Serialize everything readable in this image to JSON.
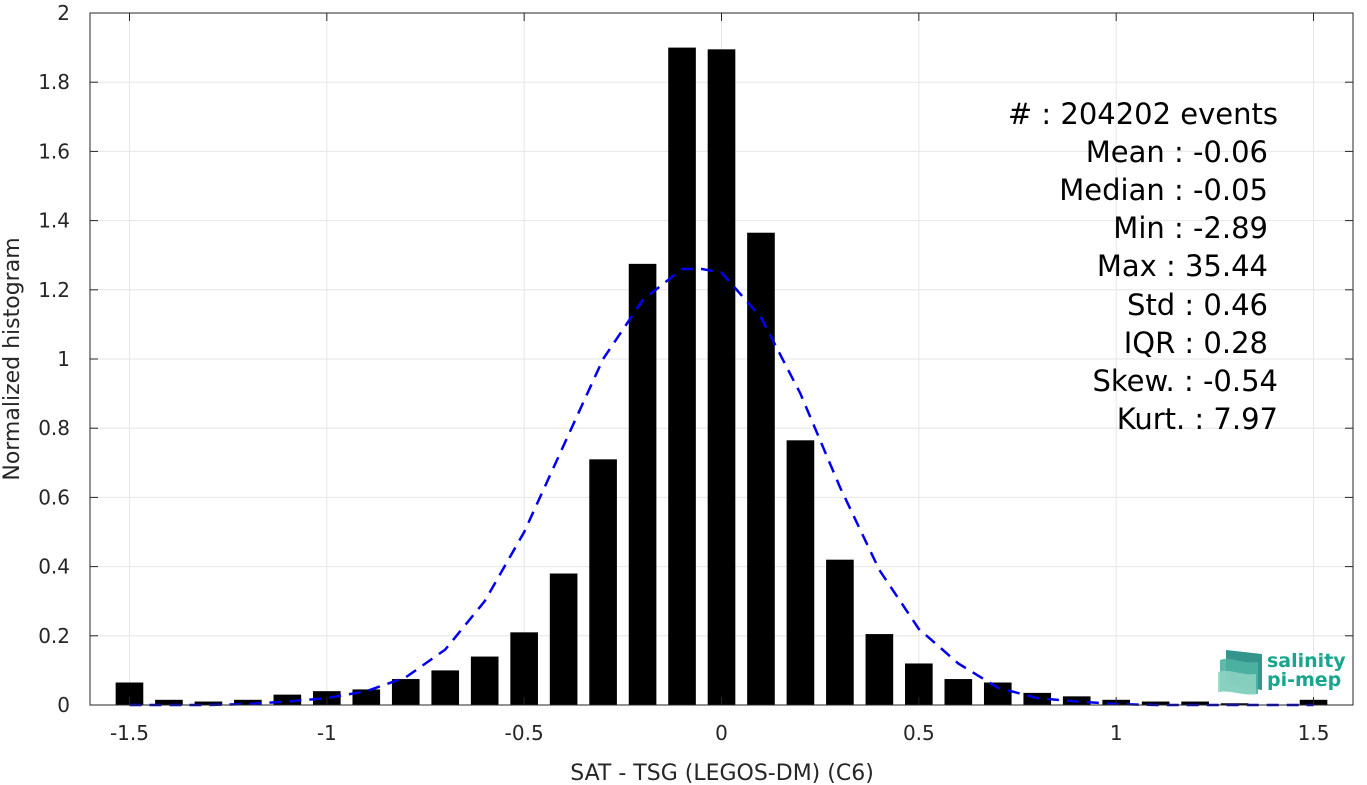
{
  "chart_data": {
    "type": "bar",
    "xlabel": "SAT - TSG (LEGOS-DM) (C6)",
    "ylabel": "Normalized histogram",
    "xlim": [
      -1.6,
      1.6
    ],
    "ylim": [
      0,
      2
    ],
    "xticks": [
      "-1.5",
      "-1",
      "-0.5",
      "0",
      "0.5",
      "1",
      "1.5"
    ],
    "xtick_values": [
      -1.5,
      -1,
      -0.5,
      0,
      0.5,
      1,
      1.5
    ],
    "yticks": [
      "0",
      "0.2",
      "0.4",
      "0.6",
      "0.8",
      "1",
      "1.2",
      "1.4",
      "1.6",
      "1.8",
      "2"
    ],
    "ytick_values": [
      0,
      0.2,
      0.4,
      0.6,
      0.8,
      1,
      1.2,
      1.4,
      1.6,
      1.8,
      2
    ],
    "grid": true,
    "bin_width": 0.1,
    "bar_width_fraction": 0.7,
    "bins": [
      -1.5,
      -1.4,
      -1.3,
      -1.2,
      -1.1,
      -1.0,
      -0.9,
      -0.8,
      -0.7,
      -0.6,
      -0.5,
      -0.4,
      -0.3,
      -0.2,
      -0.1,
      0.0,
      0.1,
      0.2,
      0.3,
      0.4,
      0.5,
      0.6,
      0.7,
      0.8,
      0.9,
      1.0,
      1.1,
      1.2,
      1.3,
      1.4,
      1.5
    ],
    "values": [
      0.065,
      0.015,
      0.01,
      0.015,
      0.03,
      0.04,
      0.045,
      0.075,
      0.1,
      0.14,
      0.21,
      0.38,
      0.71,
      1.275,
      1.9,
      1.895,
      1.365,
      0.765,
      0.42,
      0.205,
      0.12,
      0.075,
      0.065,
      0.035,
      0.025,
      0.015,
      0.01,
      0.01,
      0.005,
      0.0,
      0.015
    ],
    "bar_color": "#000000",
    "fit_curve": {
      "style": "dashed",
      "color": "#0000ee",
      "x": [
        -1.5,
        -1.4,
        -1.3,
        -1.2,
        -1.1,
        -1.0,
        -0.9,
        -0.8,
        -0.7,
        -0.6,
        -0.5,
        -0.4,
        -0.3,
        -0.2,
        -0.1,
        -0.05,
        0.0,
        0.1,
        0.2,
        0.3,
        0.4,
        0.5,
        0.6,
        0.7,
        0.8,
        0.9,
        1.0,
        1.1,
        1.2,
        1.3,
        1.4,
        1.5
      ],
      "y": [
        0.0,
        0.0,
        0.0,
        0.003,
        0.01,
        0.02,
        0.04,
        0.08,
        0.16,
        0.3,
        0.5,
        0.75,
        1.0,
        1.17,
        1.26,
        1.26,
        1.25,
        1.12,
        0.9,
        0.63,
        0.39,
        0.22,
        0.12,
        0.05,
        0.02,
        0.01,
        0.003,
        0.0,
        0.0,
        0.0,
        0.0,
        0.0
      ]
    }
  },
  "stats": [
    "#  : 204202 events",
    "Mean : -0.06",
    "Median : -0.05",
    "Min : -2.89",
    "Max : 35.44",
    "Std : 0.46",
    "IQR : 0.28",
    "Skew. : -0.54",
    "Kurt. : 7.97"
  ],
  "logo": {
    "line1": "salinity",
    "line2": "pi-mep",
    "color": "#1aa58f"
  }
}
